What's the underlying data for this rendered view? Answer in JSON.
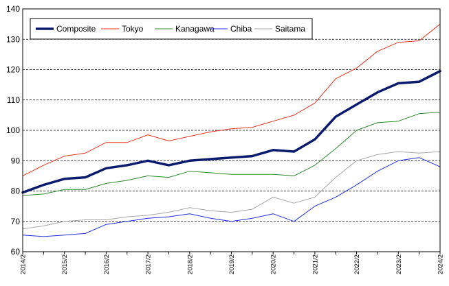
{
  "chart_data": {
    "type": "line",
    "title": "",
    "xlabel": "",
    "ylabel": "",
    "ylim": [
      60,
      140
    ],
    "yticks": [
      60,
      70,
      80,
      90,
      100,
      110,
      120,
      130,
      140
    ],
    "xlim": [
      "2014/2",
      "2024/2"
    ],
    "xticks": [
      "2014/2",
      "2015/2",
      "2016/2",
      "2017/2",
      "2018/2",
      "2019/2",
      "2020/2",
      "2021/2",
      "2022/2",
      "2023/2",
      "2024/2"
    ],
    "grid": "horizontal dashed",
    "legend_position": "top-left",
    "x": [
      "2014/2",
      "2014/8",
      "2015/2",
      "2015/8",
      "2016/2",
      "2016/8",
      "2017/2",
      "2017/8",
      "2018/2",
      "2018/8",
      "2019/2",
      "2019/8",
      "2020/2",
      "2020/8",
      "2021/2",
      "2021/8",
      "2022/2",
      "2022/8",
      "2023/2",
      "2023/8",
      "2024/2"
    ],
    "series": [
      {
        "name": "Composite",
        "color": "#0a1a6e",
        "width": 3.5,
        "values": [
          79.5,
          82.0,
          84.0,
          84.5,
          87.5,
          88.5,
          90.0,
          88.5,
          90.0,
          90.5,
          91.0,
          91.5,
          93.5,
          93.0,
          97.0,
          104.5,
          108.5,
          112.5,
          115.5,
          116.0,
          119.5
        ]
      },
      {
        "name": "Tokyo",
        "color": "#e8321e",
        "width": 1,
        "values": [
          85.0,
          88.5,
          91.5,
          92.5,
          96.0,
          96.0,
          98.5,
          96.5,
          98.0,
          99.5,
          100.5,
          101.0,
          103.0,
          105.0,
          109.0,
          117.0,
          120.5,
          126.0,
          129.0,
          129.5,
          135.0
        ]
      },
      {
        "name": "Kanagawa",
        "color": "#2a8a2a",
        "width": 1,
        "values": [
          78.5,
          79.0,
          80.5,
          80.5,
          82.5,
          83.5,
          85.0,
          84.5,
          86.5,
          86.0,
          85.5,
          85.5,
          85.5,
          85.0,
          88.5,
          94.0,
          100.0,
          102.5,
          103.0,
          105.5,
          106.0
        ]
      },
      {
        "name": "Chiba",
        "color": "#1e2ee0",
        "width": 1,
        "values": [
          65.5,
          65.0,
          65.5,
          66.0,
          69.0,
          70.0,
          71.0,
          71.5,
          72.5,
          71.0,
          70.0,
          71.0,
          72.5,
          70.0,
          75.0,
          78.0,
          82.0,
          86.5,
          90.0,
          91.0,
          88.0
        ]
      },
      {
        "name": "Saitama",
        "color": "#a6a6a6",
        "width": 1,
        "values": [
          67.5,
          68.5,
          70.0,
          70.5,
          70.5,
          71.5,
          72.0,
          73.0,
          74.5,
          73.5,
          73.0,
          74.0,
          78.0,
          76.0,
          78.0,
          84.5,
          90.0,
          92.0,
          93.0,
          92.5,
          93.0
        ]
      }
    ]
  }
}
